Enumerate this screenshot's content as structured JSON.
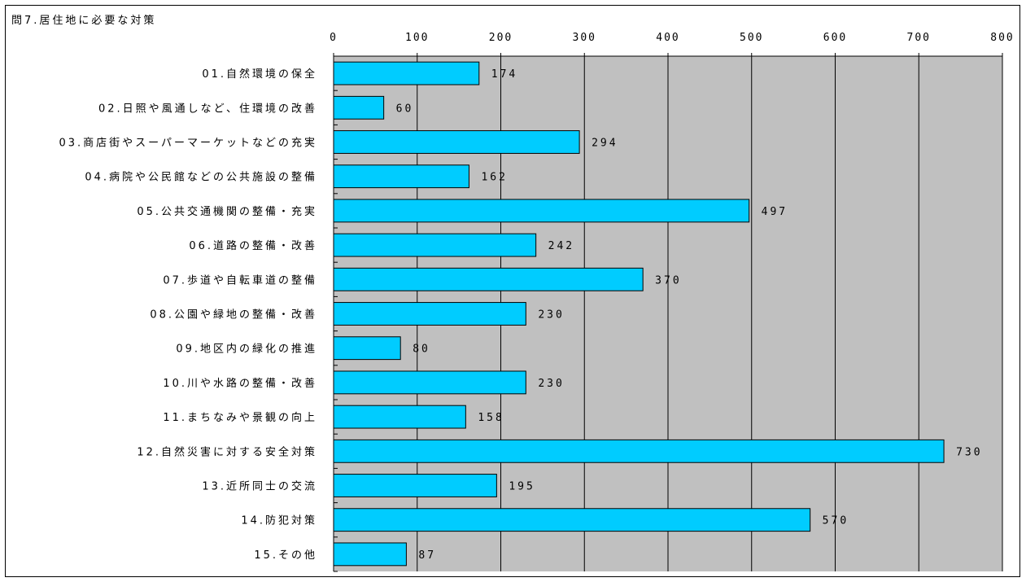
{
  "chart_data": {
    "type": "bar",
    "orientation": "horizontal",
    "title": "問7.居住地に必要な対策",
    "categories": [
      "01.自然環境の保全",
      "02.日照や風通しなど、住環境の改善",
      "03.商店街やスーパーマーケットなどの充実",
      "04.病院や公民館などの公共施設の整備",
      "05.公共交通機関の整備・充実",
      "06.道路の整備・改善",
      "07.歩道や自転車道の整備",
      "08.公園や緑地の整備・改善",
      "09.地区内の緑化の推進",
      "10.川や水路の整備・改善",
      "11.まちなみや景観の向上",
      "12.自然災害に対する安全対策",
      "13.近所同士の交流",
      "14.防犯対策",
      "15.その他"
    ],
    "values": [
      174,
      60,
      294,
      162,
      497,
      242,
      370,
      230,
      80,
      230,
      158,
      730,
      195,
      570,
      87
    ],
    "xlim": [
      0,
      800
    ],
    "xticks": [
      0,
      100,
      200,
      300,
      400,
      500,
      600,
      700,
      800
    ],
    "axis_position": "top",
    "grid": true,
    "xlabel": "",
    "ylabel": "",
    "colors": {
      "bar": "#00CCFF",
      "bar_stroke": "#000000",
      "plot_background": "#C0C0C0",
      "grid": "#000000"
    }
  }
}
